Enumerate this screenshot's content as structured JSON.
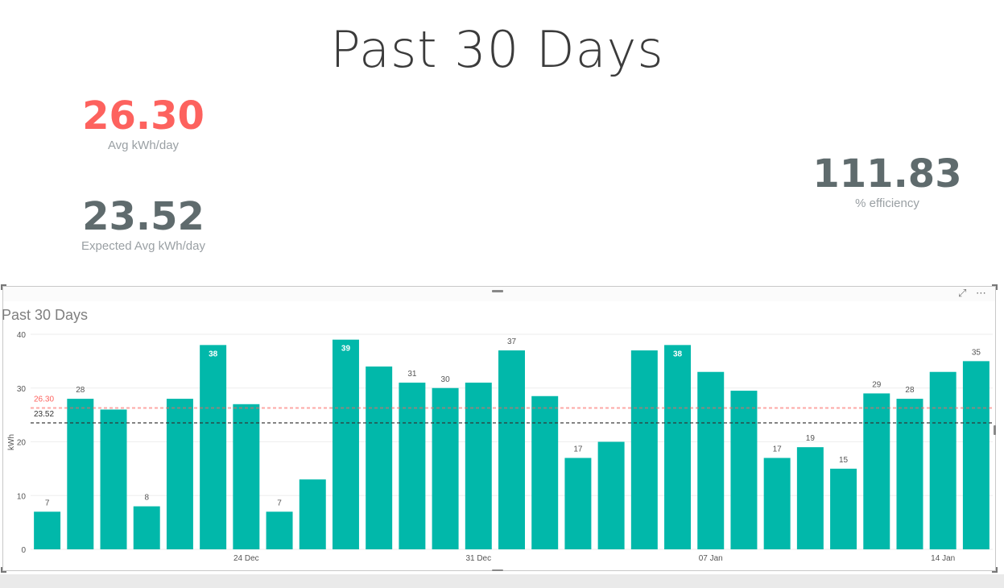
{
  "page": {
    "title": "Past 30 Days"
  },
  "kpis": {
    "avg": {
      "value": "26.30",
      "label": "Avg kWh/day",
      "color": "#fd625e"
    },
    "expected": {
      "value": "23.52",
      "label": "Expected Avg kWh/day",
      "color": "#5f6b6d"
    },
    "efficiency": {
      "value": "111.83",
      "label": "% efficiency",
      "color": "#5f6b6d"
    }
  },
  "chart_data": {
    "type": "bar",
    "title": "Past 30 Days",
    "ylabel": "kWh",
    "xlabel": "",
    "ylim": [
      0,
      40
    ],
    "yticks": [
      0,
      10,
      20,
      30,
      40
    ],
    "x_tick_labels": [
      "24 Dec",
      "31 Dec",
      "07 Jan",
      "14 Jan"
    ],
    "x_tick_index": [
      6,
      13,
      20,
      27
    ],
    "values": [
      7,
      28,
      26,
      8,
      28,
      38,
      27,
      7,
      13,
      39,
      34,
      31,
      30,
      31,
      37,
      28.5,
      17,
      20,
      37,
      38,
      33,
      29.5,
      17,
      19,
      15,
      29,
      28,
      33,
      35
    ],
    "data_labels": [
      "7",
      "28",
      "",
      "8",
      "",
      "38",
      "",
      "7",
      "",
      "39",
      "",
      "31",
      "30",
      "",
      "37",
      "",
      "17",
      "",
      "",
      "38",
      "",
      "",
      "17",
      "19",
      "15",
      "29",
      "28",
      "",
      "35"
    ],
    "bar_color": "#01b8aa",
    "reference_lines": [
      {
        "label": "26.30",
        "value": 26.3,
        "color": "#fd625e"
      },
      {
        "label": "23.52",
        "value": 23.52,
        "color": "#333333"
      }
    ],
    "grid": true
  }
}
